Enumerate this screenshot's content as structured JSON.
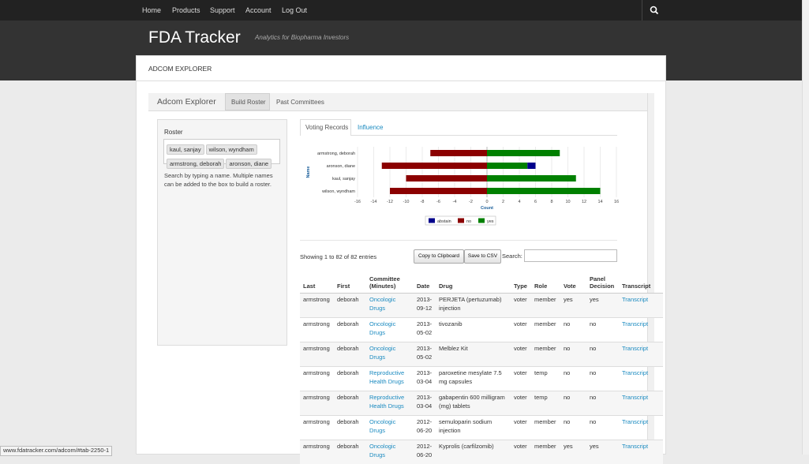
{
  "nav": {
    "links": [
      "Home",
      "Products",
      "Support",
      "Account",
      "Log Out"
    ]
  },
  "header": {
    "title": "FDA Tracker",
    "subtitle": "Analytics for Biopharma Investors"
  },
  "section_title": "ADCOM EXPLORER",
  "explorer": {
    "title": "Adcom Explorer",
    "tabs": [
      "Build Roster",
      "Past Committees"
    ]
  },
  "roster": {
    "label": "Roster",
    "tags": [
      "kaul, sanjay",
      "wilson, wyndham",
      "armstrong, deborah",
      "aronson, diane"
    ],
    "help": "Search by typing a name. Multiple names can be added to the box to build a roster."
  },
  "chart_tabs": [
    "Voting Records",
    "Influence"
  ],
  "chart_data": {
    "type": "bar",
    "orientation": "horizontal",
    "stacked": true,
    "categories": [
      "armstrong, deborah",
      "aronson, diane",
      "kaul, sanjay",
      "wilson, wyndham"
    ],
    "series": [
      {
        "name": "abstain",
        "color": "#00008b",
        "values": [
          0,
          1,
          0,
          0
        ]
      },
      {
        "name": "no",
        "color": "#8b0000",
        "values": [
          -7,
          -13,
          -10,
          -12
        ]
      },
      {
        "name": "yes",
        "color": "#008000",
        "values": [
          9,
          5,
          11,
          14
        ]
      }
    ],
    "xlim": [
      -16,
      16
    ],
    "xticks": [
      -16,
      -14,
      -12,
      -10,
      -8,
      -6,
      -4,
      -2,
      0,
      2,
      4,
      6,
      8,
      10,
      12,
      14,
      16
    ],
    "x_label": "Count",
    "y_label": "Name",
    "grid": true,
    "legend": "bottom"
  },
  "table_info": "Showing 1 to 82 of 82 entries",
  "buttons": [
    "Copy to Clipboard",
    "Save to CSV"
  ],
  "search_label": "Search:",
  "table": {
    "columns": [
      "Last",
      "First",
      "Committee (Minutes)",
      "Date",
      "Drug",
      "Type",
      "Role",
      "Vote",
      "Panel Decision",
      "Transcript"
    ],
    "rows": [
      [
        "armstrong",
        "deborah",
        "Oncologic Drugs",
        "2013-09-12",
        "PERJETA (pertuzumab) injection",
        "voter",
        "member",
        "yes",
        "yes",
        "Transcript"
      ],
      [
        "armstrong",
        "deborah",
        "Oncologic Drugs",
        "2013-05-02",
        "tivozanib",
        "voter",
        "member",
        "no",
        "no",
        "Transcript"
      ],
      [
        "armstrong",
        "deborah",
        "Oncologic Drugs",
        "2013-05-02",
        "Melblez Kit",
        "voter",
        "member",
        "no",
        "no",
        "Transcript"
      ],
      [
        "armstrong",
        "deborah",
        "Reproductive Health Drugs",
        "2013-03-04",
        "paroxetine mesylate 7.5 mg capsules",
        "voter",
        "temp",
        "no",
        "no",
        "Transcript"
      ],
      [
        "armstrong",
        "deborah",
        "Reproductive Health Drugs",
        "2013-03-04",
        "gabapentin 600 milligram (mg) tablets",
        "voter",
        "temp",
        "no",
        "no",
        "Transcript"
      ],
      [
        "armstrong",
        "deborah",
        "Oncologic Drugs",
        "2012-06-20",
        "semuloparin sodium injection",
        "voter",
        "member",
        "no",
        "no",
        "Transcript"
      ],
      [
        "armstrong",
        "deborah",
        "Oncologic Drugs",
        "2012-06-20",
        "Kyprolis (carfilzomib)",
        "voter",
        "member",
        "yes",
        "yes",
        "Transcript"
      ]
    ]
  },
  "status_url": "www.fdatracker.com/adcom/#tab-2250-1"
}
